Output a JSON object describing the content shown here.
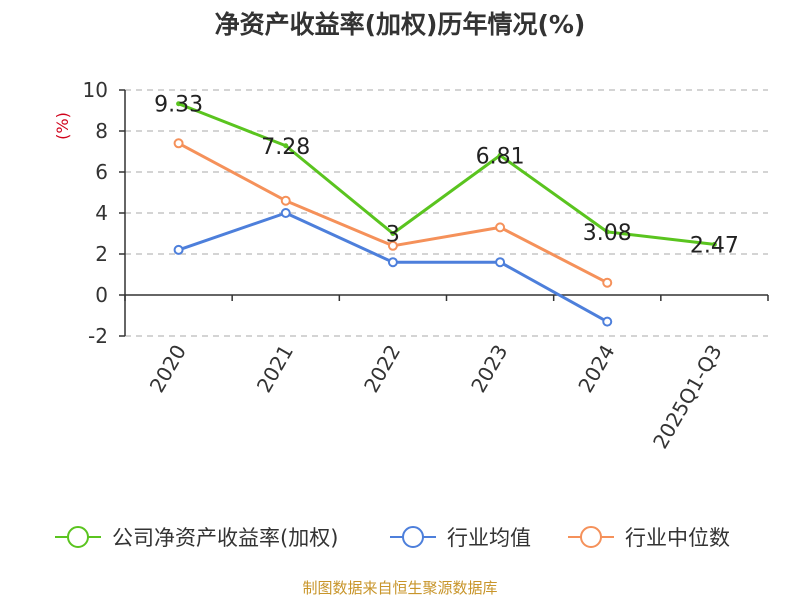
{
  "chart_data": {
    "type": "line",
    "title": "净资产收益率(加权)历年情况(%)",
    "ylabel": "(%)",
    "xlabel": "",
    "categories": [
      "2020",
      "2021",
      "2022",
      "2023",
      "2024",
      "2025Q1-Q3"
    ],
    "ylim": [
      -2,
      10
    ],
    "yticks": [
      10,
      8,
      6,
      4,
      2,
      0,
      -2
    ],
    "grid": true,
    "legend_position": "bottom",
    "series": [
      {
        "name": "公司净资产收益率(加权)",
        "color": "#5ac41f",
        "values": [
          9.33,
          7.28,
          3,
          6.81,
          3.08,
          2.47
        ],
        "labels": [
          "9.33",
          "7.28",
          "3",
          "6.81",
          "3.08",
          "2.47"
        ]
      },
      {
        "name": "行业均值",
        "color": "#4d7fdb",
        "values": [
          2.2,
          4.0,
          1.6,
          1.6,
          -1.3,
          null
        ]
      },
      {
        "name": "行业中位数",
        "color": "#f5915a",
        "values": [
          7.4,
          4.6,
          2.4,
          3.3,
          0.6,
          null
        ]
      }
    ],
    "source": "制图数据来自恒生聚源数据库",
    "source_color": "#c8952a",
    "ylabel_color": "#d0021b"
  }
}
